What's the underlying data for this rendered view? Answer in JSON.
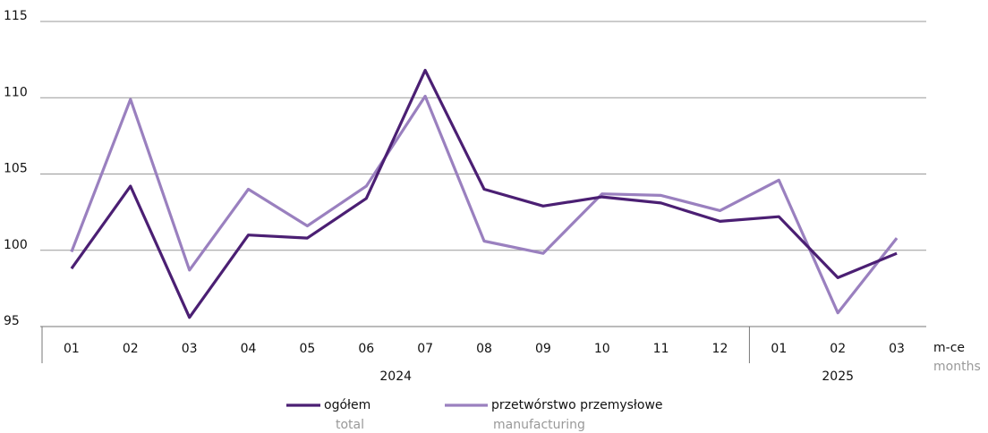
{
  "chart_data": {
    "type": "line",
    "categories": [
      "01",
      "02",
      "03",
      "04",
      "05",
      "06",
      "07",
      "08",
      "09",
      "10",
      "11",
      "12",
      "01",
      "02",
      "03"
    ],
    "x_groups": [
      {
        "label": "2024",
        "size": 12
      },
      {
        "label": "2025",
        "size": 3
      }
    ],
    "xlabel": "m-ce",
    "xlabel_en": "months",
    "ylim": [
      95,
      115
    ],
    "yticks": [
      95,
      100,
      105,
      110,
      115
    ],
    "grid": true,
    "series": [
      {
        "name": "ogółem",
        "name_en": "total",
        "color": "#4b1f73",
        "values": [
          98.8,
          104.2,
          95.6,
          101.0,
          100.8,
          103.4,
          111.8,
          104.0,
          102.9,
          103.5,
          103.1,
          101.9,
          102.2,
          98.2,
          99.8
        ]
      },
      {
        "name": "przetwórstwo przemysłowe",
        "name_en": "manufacturing",
        "color": "#9a80bf",
        "values": [
          99.9,
          109.9,
          98.7,
          104.0,
          101.6,
          104.2,
          110.1,
          100.6,
          99.8,
          103.7,
          103.6,
          102.6,
          104.6,
          95.9,
          100.8
        ]
      }
    ]
  }
}
